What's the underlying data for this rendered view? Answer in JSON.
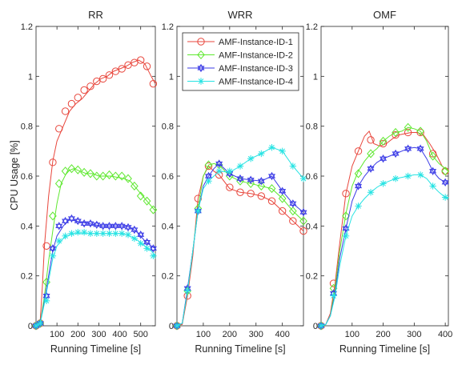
{
  "figure": {
    "ylabel": "CPU Usage [%]",
    "legend": {
      "placement": "top (WRR panel)",
      "entries": [
        {
          "name": "AMF-Instance-ID-1",
          "color": "#e8463c",
          "marker": "circle"
        },
        {
          "name": "AMF-Instance-ID-2",
          "color": "#5ee82f",
          "marker": "diamond"
        },
        {
          "name": "AMF-Instance-ID-3",
          "color": "#3b3be6",
          "marker": "hexagram"
        },
        {
          "name": "AMF-Instance-ID-4",
          "color": "#26e3e3",
          "marker": "asterisk"
        }
      ]
    }
  },
  "chart_data": [
    {
      "type": "line",
      "title": "RR",
      "xlabel": "Running Timeline [s]",
      "ylabel": "CPU Usage [%]",
      "xlim": [
        0,
        570
      ],
      "ylim": [
        0,
        1.2
      ],
      "xticks": [
        100,
        200,
        300,
        400,
        500
      ],
      "yticks": [
        0,
        0.2,
        0.4,
        0.6,
        0.8,
        1,
        1.2
      ],
      "ytick_labels": [
        "0",
        "0.2",
        "0.4",
        "0.6",
        "0.8",
        "1",
        "1.2"
      ],
      "grid": false,
      "series": [
        {
          "name": "AMF-Instance-ID-1",
          "x": [
            0,
            10,
            20,
            30,
            40,
            60,
            80,
            100,
            130,
            160,
            190,
            220,
            250,
            280,
            310,
            340,
            370,
            400,
            430,
            460,
            490,
            520,
            550,
            570
          ],
          "y": [
            0,
            0.005,
            0.02,
            0.15,
            0.32,
            0.52,
            0.66,
            0.74,
            0.8,
            0.86,
            0.89,
            0.91,
            0.94,
            0.97,
            0.99,
            1.0,
            1.02,
            1.03,
            1.04,
            1.055,
            1.065,
            1.05,
            1.0,
            0.97
          ],
          "marker_x": [
            0,
            20,
            50,
            80,
            110,
            140,
            170,
            200,
            230,
            260,
            290,
            320,
            350,
            380,
            410,
            440,
            470,
            500,
            530,
            560
          ],
          "marker_y": [
            0,
            0.01,
            0.32,
            0.655,
            0.79,
            0.86,
            0.89,
            0.915,
            0.945,
            0.96,
            0.98,
            0.99,
            1.005,
            1.02,
            1.03,
            1.045,
            1.055,
            1.065,
            1.04,
            0.97
          ]
        },
        {
          "name": "AMF-Instance-ID-2",
          "x": [
            0,
            10,
            20,
            40,
            60,
            80,
            100,
            120,
            150,
            180,
            210,
            240,
            270,
            300,
            330,
            360,
            390,
            420,
            450,
            480,
            510,
            540,
            570
          ],
          "y": [
            0,
            0.005,
            0.01,
            0.12,
            0.26,
            0.38,
            0.49,
            0.57,
            0.62,
            0.63,
            0.62,
            0.61,
            0.61,
            0.6,
            0.6,
            0.6,
            0.595,
            0.59,
            0.58,
            0.55,
            0.52,
            0.49,
            0.46
          ],
          "marker_x": [
            0,
            20,
            50,
            80,
            110,
            140,
            170,
            200,
            230,
            260,
            290,
            320,
            350,
            380,
            410,
            440,
            470,
            500,
            530,
            560
          ],
          "marker_y": [
            0,
            0.01,
            0.175,
            0.44,
            0.57,
            0.62,
            0.63,
            0.625,
            0.615,
            0.61,
            0.6,
            0.6,
            0.605,
            0.6,
            0.6,
            0.59,
            0.56,
            0.52,
            0.5,
            0.465
          ]
        },
        {
          "name": "AMF-Instance-ID-3",
          "x": [
            0,
            10,
            20,
            40,
            60,
            80,
            100,
            130,
            160,
            190,
            220,
            250,
            280,
            310,
            340,
            370,
            400,
            430,
            460,
            490,
            520,
            550,
            570
          ],
          "y": [
            0,
            0.005,
            0.01,
            0.1,
            0.2,
            0.3,
            0.36,
            0.4,
            0.425,
            0.42,
            0.415,
            0.41,
            0.405,
            0.4,
            0.4,
            0.4,
            0.4,
            0.4,
            0.39,
            0.37,
            0.34,
            0.32,
            0.31
          ],
          "marker_x": [
            0,
            20,
            50,
            80,
            110,
            140,
            170,
            200,
            230,
            260,
            290,
            320,
            350,
            380,
            410,
            440,
            470,
            500,
            530,
            560
          ],
          "marker_y": [
            0,
            0.01,
            0.12,
            0.31,
            0.4,
            0.42,
            0.43,
            0.42,
            0.41,
            0.41,
            0.405,
            0.4,
            0.4,
            0.4,
            0.4,
            0.395,
            0.385,
            0.365,
            0.335,
            0.31
          ]
        },
        {
          "name": "AMF-Instance-ID-4",
          "x": [
            0,
            10,
            20,
            40,
            60,
            80,
            100,
            130,
            160,
            190,
            220,
            250,
            280,
            310,
            340,
            370,
            400,
            430,
            460,
            490,
            520,
            550,
            570
          ],
          "y": [
            0,
            0.005,
            0.01,
            0.09,
            0.18,
            0.27,
            0.32,
            0.35,
            0.365,
            0.37,
            0.37,
            0.37,
            0.37,
            0.37,
            0.37,
            0.37,
            0.37,
            0.365,
            0.355,
            0.34,
            0.32,
            0.3,
            0.28
          ],
          "marker_x": [
            0,
            20,
            50,
            80,
            110,
            140,
            170,
            200,
            230,
            260,
            290,
            320,
            350,
            380,
            410,
            440,
            470,
            500,
            530,
            560
          ],
          "marker_y": [
            0,
            0.01,
            0.1,
            0.28,
            0.34,
            0.36,
            0.37,
            0.375,
            0.375,
            0.37,
            0.37,
            0.37,
            0.37,
            0.37,
            0.37,
            0.365,
            0.35,
            0.33,
            0.31,
            0.28
          ]
        }
      ]
    },
    {
      "type": "line",
      "title": "WRR",
      "xlabel": "Running Timeline [s]",
      "ylabel": "",
      "xlim": [
        0,
        480
      ],
      "ylim": [
        0,
        1.2
      ],
      "xticks": [
        100,
        200,
        300,
        400
      ],
      "yticks": [
        0,
        0.2,
        0.4,
        0.6,
        0.8,
        1,
        1.2
      ],
      "ytick_labels": [
        "0",
        "0.2",
        "0.4",
        "0.6",
        "0.8",
        "1",
        "1.2"
      ],
      "grid": false,
      "series": [
        {
          "name": "AMF-Instance-ID-1",
          "x": [
            0,
            20,
            40,
            60,
            80,
            100,
            120,
            140,
            160,
            200,
            240,
            280,
            320,
            360,
            400,
            440,
            480
          ],
          "y": [
            0,
            0.005,
            0.12,
            0.28,
            0.51,
            0.6,
            0.64,
            0.62,
            0.605,
            0.55,
            0.535,
            0.53,
            0.52,
            0.5,
            0.46,
            0.42,
            0.38
          ],
          "marker_x": [
            0,
            40,
            80,
            120,
            160,
            200,
            240,
            280,
            320,
            360,
            400,
            440,
            480
          ],
          "marker_y": [
            0,
            0.12,
            0.51,
            0.64,
            0.605,
            0.555,
            0.535,
            0.53,
            0.52,
            0.5,
            0.46,
            0.42,
            0.38
          ]
        },
        {
          "name": "AMF-Instance-ID-2",
          "x": [
            0,
            20,
            40,
            60,
            80,
            100,
            120,
            140,
            160,
            200,
            240,
            280,
            320,
            360,
            400,
            440,
            480
          ],
          "y": [
            0,
            0.01,
            0.14,
            0.3,
            0.47,
            0.6,
            0.645,
            0.65,
            0.645,
            0.6,
            0.58,
            0.57,
            0.56,
            0.55,
            0.51,
            0.46,
            0.42
          ],
          "marker_x": [
            0,
            40,
            80,
            120,
            160,
            200,
            240,
            280,
            320,
            360,
            400,
            440,
            480
          ],
          "marker_y": [
            0,
            0.14,
            0.47,
            0.645,
            0.645,
            0.6,
            0.58,
            0.57,
            0.56,
            0.55,
            0.51,
            0.46,
            0.42
          ]
        },
        {
          "name": "AMF-Instance-ID-3",
          "x": [
            0,
            20,
            40,
            60,
            80,
            100,
            120,
            140,
            160,
            200,
            240,
            280,
            320,
            360,
            400,
            440,
            480
          ],
          "y": [
            0,
            0.01,
            0.15,
            0.3,
            0.46,
            0.56,
            0.6,
            0.63,
            0.65,
            0.61,
            0.59,
            0.585,
            0.58,
            0.6,
            0.54,
            0.49,
            0.455
          ],
          "marker_x": [
            0,
            40,
            80,
            120,
            160,
            200,
            240,
            280,
            320,
            360,
            400,
            440,
            480
          ],
          "marker_y": [
            0,
            0.15,
            0.46,
            0.6,
            0.65,
            0.61,
            0.59,
            0.585,
            0.58,
            0.6,
            0.54,
            0.49,
            0.455
          ]
        },
        {
          "name": "AMF-Instance-ID-4",
          "x": [
            0,
            20,
            40,
            60,
            80,
            100,
            120,
            140,
            160,
            200,
            240,
            280,
            320,
            360,
            400,
            440,
            480
          ],
          "y": [
            0,
            0.01,
            0.14,
            0.3,
            0.46,
            0.55,
            0.58,
            0.6,
            0.62,
            0.615,
            0.64,
            0.67,
            0.69,
            0.715,
            0.7,
            0.64,
            0.59
          ],
          "marker_x": [
            0,
            40,
            80,
            120,
            160,
            200,
            240,
            280,
            320,
            360,
            400,
            440,
            480
          ],
          "marker_y": [
            0,
            0.14,
            0.46,
            0.58,
            0.62,
            0.62,
            0.64,
            0.67,
            0.69,
            0.715,
            0.7,
            0.64,
            0.59
          ]
        }
      ]
    },
    {
      "type": "line",
      "title": "OMF",
      "xlabel": "Running Timeline [s]",
      "ylabel": "",
      "xlim": [
        0,
        410
      ],
      "ylim": [
        0,
        1.2
      ],
      "xticks": [
        100,
        200,
        300,
        400
      ],
      "yticks": [
        0,
        0.2,
        0.4,
        0.6,
        0.8,
        1,
        1.2
      ],
      "ytick_labels": [
        "0",
        "0.2",
        "0.4",
        "0.6",
        "0.8",
        "1",
        "1.2"
      ],
      "grid": false,
      "series": [
        {
          "name": "AMF-Instance-ID-1",
          "x": [
            0,
            15,
            30,
            45,
            60,
            80,
            100,
            120,
            140,
            155,
            170,
            190,
            210,
            230,
            250,
            270,
            290,
            310,
            330,
            350,
            370,
            390,
            410
          ],
          "y": [
            0,
            0.005,
            0.05,
            0.17,
            0.33,
            0.53,
            0.64,
            0.7,
            0.76,
            0.78,
            0.73,
            0.72,
            0.73,
            0.75,
            0.765,
            0.77,
            0.775,
            0.775,
            0.765,
            0.73,
            0.69,
            0.64,
            0.62
          ],
          "marker_x": [
            0,
            40,
            80,
            120,
            160,
            200,
            240,
            280,
            320,
            360,
            400
          ],
          "marker_y": [
            0,
            0.17,
            0.53,
            0.7,
            0.745,
            0.73,
            0.765,
            0.775,
            0.775,
            0.69,
            0.62
          ]
        },
        {
          "name": "AMF-Instance-ID-2",
          "x": [
            0,
            15,
            30,
            45,
            60,
            80,
            100,
            120,
            140,
            160,
            180,
            200,
            220,
            240,
            260,
            280,
            300,
            320,
            340,
            360,
            380,
            400,
            410
          ],
          "y": [
            0,
            0.005,
            0.04,
            0.15,
            0.3,
            0.45,
            0.56,
            0.62,
            0.66,
            0.69,
            0.71,
            0.74,
            0.76,
            0.775,
            0.78,
            0.795,
            0.79,
            0.78,
            0.74,
            0.68,
            0.65,
            0.63,
            0.62
          ],
          "marker_x": [
            0,
            40,
            80,
            120,
            160,
            200,
            240,
            280,
            320,
            360,
            400
          ],
          "marker_y": [
            0,
            0.15,
            0.44,
            0.61,
            0.69,
            0.74,
            0.775,
            0.795,
            0.78,
            0.68,
            0.62
          ]
        },
        {
          "name": "AMF-Instance-ID-3",
          "x": [
            0,
            15,
            30,
            45,
            60,
            80,
            100,
            120,
            140,
            160,
            180,
            200,
            220,
            240,
            260,
            280,
            300,
            320,
            340,
            360,
            380,
            400,
            410
          ],
          "y": [
            0,
            0.005,
            0.04,
            0.13,
            0.27,
            0.39,
            0.5,
            0.56,
            0.6,
            0.63,
            0.655,
            0.67,
            0.68,
            0.69,
            0.7,
            0.71,
            0.715,
            0.71,
            0.67,
            0.62,
            0.59,
            0.575,
            0.57
          ],
          "marker_x": [
            0,
            40,
            80,
            120,
            160,
            200,
            240,
            280,
            320,
            360,
            400
          ],
          "marker_y": [
            0,
            0.13,
            0.39,
            0.56,
            0.63,
            0.67,
            0.69,
            0.71,
            0.71,
            0.62,
            0.575
          ]
        },
        {
          "name": "AMF-Instance-ID-4",
          "x": [
            0,
            15,
            30,
            45,
            60,
            80,
            100,
            120,
            140,
            160,
            180,
            200,
            220,
            240,
            260,
            280,
            300,
            320,
            340,
            360,
            380,
            400,
            410
          ],
          "y": [
            0,
            0.005,
            0.04,
            0.12,
            0.24,
            0.36,
            0.44,
            0.48,
            0.51,
            0.535,
            0.555,
            0.57,
            0.58,
            0.59,
            0.595,
            0.6,
            0.605,
            0.605,
            0.59,
            0.56,
            0.535,
            0.515,
            0.51
          ],
          "marker_x": [
            0,
            40,
            80,
            120,
            160,
            200,
            240,
            280,
            320,
            360,
            400
          ],
          "marker_y": [
            0,
            0.12,
            0.36,
            0.48,
            0.535,
            0.57,
            0.59,
            0.6,
            0.605,
            0.56,
            0.515
          ]
        }
      ]
    }
  ]
}
